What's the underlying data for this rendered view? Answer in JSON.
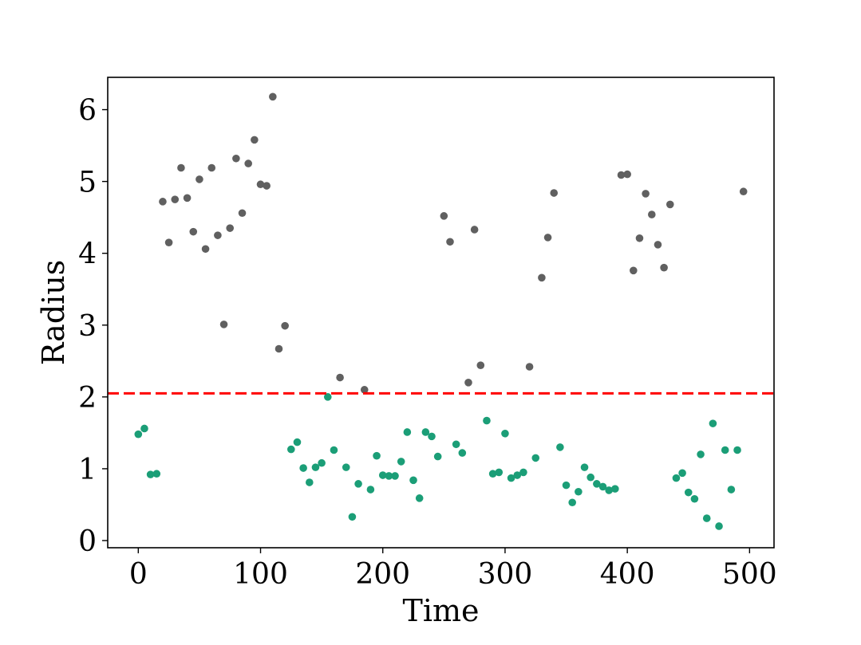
{
  "chart_data": {
    "type": "scatter",
    "xlabel": "Time",
    "ylabel": "Radius",
    "xlim": [
      -25,
      520
    ],
    "ylim": [
      -0.1,
      6.45
    ],
    "xticks": [
      0,
      100,
      200,
      300,
      400,
      500
    ],
    "yticks": [
      0,
      1,
      2,
      3,
      4,
      5,
      6
    ],
    "threshold": {
      "y": 2.05,
      "color": "#ff0000",
      "style": "dashed"
    },
    "grid": false,
    "colors": {
      "above": "#606060",
      "below": "#1b9e77"
    },
    "series": [
      {
        "color": "#606060",
        "x": [
          20,
          25,
          30,
          35,
          40,
          45,
          50,
          55,
          60,
          65,
          70,
          75,
          80,
          85,
          90,
          95,
          100,
          105,
          110,
          115,
          120,
          165,
          185,
          250,
          255,
          270,
          275,
          280,
          320,
          330,
          335,
          340,
          395,
          400,
          405,
          410,
          415,
          420,
          425,
          430,
          435,
          495
        ],
        "y": [
          4.72,
          4.15,
          4.75,
          5.19,
          4.77,
          4.3,
          5.03,
          4.06,
          5.19,
          4.25,
          3.01,
          4.35,
          5.32,
          4.56,
          5.25,
          5.58,
          4.96,
          4.94,
          6.18,
          2.67,
          2.99,
          2.27,
          2.1,
          4.52,
          4.16,
          2.2,
          4.33,
          2.44,
          2.42,
          3.66,
          4.22,
          4.84,
          5.09,
          5.1,
          3.76,
          4.21,
          4.83,
          4.54,
          4.12,
          3.8,
          4.68,
          4.86
        ]
      },
      {
        "color": "#1b9e77",
        "x": [
          0,
          5,
          10,
          15,
          125,
          130,
          135,
          140,
          145,
          150,
          155,
          160,
          170,
          175,
          180,
          190,
          195,
          200,
          205,
          210,
          215,
          220,
          225,
          230,
          235,
          240,
          245,
          260,
          265,
          285,
          290,
          295,
          300,
          305,
          310,
          315,
          325,
          345,
          350,
          355,
          360,
          365,
          370,
          375,
          380,
          385,
          390,
          440,
          445,
          450,
          455,
          460,
          465,
          470,
          475,
          480,
          485,
          490
        ],
        "y": [
          1.48,
          1.56,
          0.92,
          0.93,
          1.27,
          1.37,
          1.01,
          0.81,
          1.02,
          1.08,
          2.0,
          1.26,
          1.02,
          0.33,
          0.79,
          0.71,
          1.18,
          0.91,
          0.9,
          0.9,
          1.1,
          1.51,
          0.84,
          0.59,
          1.51,
          1.45,
          1.17,
          1.34,
          1.22,
          1.67,
          0.93,
          0.95,
          1.49,
          0.87,
          0.91,
          0.95,
          1.15,
          1.3,
          0.77,
          0.53,
          0.68,
          1.02,
          0.88,
          0.79,
          0.75,
          0.7,
          0.72,
          0.87,
          0.94,
          0.67,
          0.58,
          1.2,
          0.31,
          1.63,
          0.2,
          1.26,
          0.71,
          1.26
        ]
      }
    ]
  }
}
